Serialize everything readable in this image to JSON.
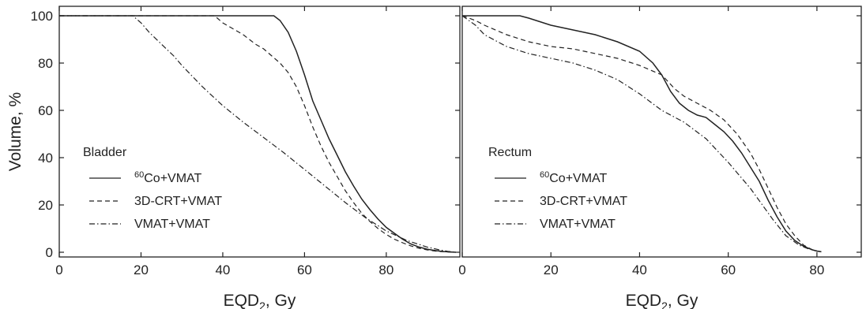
{
  "chart_data": [
    {
      "type": "line",
      "title": "",
      "xlabel": "EQD",
      "xlabel_subscript": "2",
      "xlabel_suffix": ", Gy",
      "ylabel": "Volume, %",
      "xlim": [
        0,
        98
      ],
      "ylim": [
        -2,
        104
      ],
      "xticks": [
        0,
        20,
        40,
        60,
        80
      ],
      "yticks": [
        0,
        20,
        40,
        60,
        80,
        100
      ],
      "legend_title": "Bladder",
      "legend_position": "lower-left",
      "grid": false,
      "series": [
        {
          "name_sup": "60",
          "name": "Co+VMAT",
          "line_style": "solid",
          "x": [
            0,
            50,
            52.5,
            54,
            56,
            58,
            60,
            62,
            64,
            66,
            68,
            70,
            72,
            74,
            76,
            78,
            80,
            82,
            84,
            86,
            88,
            90,
            92,
            94,
            96,
            97
          ],
          "y": [
            100,
            100,
            100,
            98,
            93,
            85,
            75,
            64,
            56,
            48,
            41,
            34,
            28,
            22.5,
            18,
            14,
            10.5,
            8,
            5.5,
            3.5,
            2.2,
            1.3,
            0.7,
            0.3,
            0.1,
            0
          ]
        },
        {
          "name": "3D-CRT+VMAT",
          "line_style": "dashed",
          "x": [
            0,
            38,
            40,
            42,
            45,
            48,
            50,
            52,
            54,
            56,
            58,
            60,
            62,
            64,
            66,
            68,
            70,
            72,
            74,
            76,
            78,
            80,
            82,
            84,
            86,
            88,
            90,
            92,
            94,
            96,
            97
          ],
          "y": [
            100,
            100,
            97,
            95,
            92,
            88,
            86,
            83,
            80,
            76,
            70,
            62,
            53,
            45,
            38,
            32,
            26,
            21,
            16.5,
            13,
            10,
            7.5,
            5.5,
            4,
            2.7,
            1.7,
            1,
            0.5,
            0.2,
            0.05,
            0
          ]
        },
        {
          "name": "VMAT+VMAT",
          "line_style": "dash-dot",
          "x": [
            0,
            18,
            20,
            22,
            25,
            28,
            30,
            35,
            40,
            45,
            50,
            55,
            60,
            65,
            70,
            75,
            80,
            85,
            90,
            93,
            95,
            97
          ],
          "y": [
            100,
            100,
            97,
            93,
            88,
            83,
            79,
            70,
            62,
            55,
            48.5,
            42,
            35,
            28,
            21,
            14.5,
            9,
            5,
            2.2,
            1,
            0.4,
            0
          ]
        }
      ]
    },
    {
      "type": "line",
      "title": "",
      "xlabel": "EQD",
      "xlabel_subscript": "2",
      "xlabel_suffix": ", Gy",
      "ylabel": "",
      "xlim": [
        0,
        90
      ],
      "ylim": [
        -2,
        104
      ],
      "xticks": [
        0,
        20,
        40,
        60,
        80
      ],
      "yticks": [],
      "legend_title": "Rectum",
      "legend_position": "lower-left",
      "grid": false,
      "series": [
        {
          "name_sup": "60",
          "name": "Co+VMAT",
          "line_style": "solid",
          "x": [
            0,
            13,
            15,
            20,
            25,
            30,
            35,
            40,
            43,
            45,
            47,
            49,
            51,
            53,
            55,
            57,
            59,
            61,
            63,
            65,
            67,
            69,
            71,
            73,
            75,
            77,
            79,
            80,
            81
          ],
          "y": [
            100,
            100,
            99,
            96,
            94,
            92,
            89,
            85,
            80,
            75,
            68,
            63,
            60,
            58,
            57,
            54,
            51,
            47,
            42,
            36,
            30,
            22,
            15,
            9,
            5,
            2.5,
            1,
            0.5,
            0.2
          ]
        },
        {
          "name": "3D-CRT+VMAT",
          "line_style": "dashed",
          "x": [
            0,
            3,
            5,
            10,
            15,
            20,
            25,
            30,
            35,
            40,
            45,
            48,
            50,
            53,
            56,
            59,
            62,
            65,
            67,
            69,
            71,
            73,
            75,
            77,
            79,
            80,
            81
          ],
          "y": [
            100,
            98,
            96,
            92,
            89,
            87,
            86,
            84,
            82,
            79,
            75,
            69,
            66,
            63,
            60,
            56,
            50,
            42,
            35,
            27,
            19,
            12,
            7,
            3,
            1,
            0.5,
            0.2
          ]
        },
        {
          "name": "VMAT+VMAT",
          "line_style": "dash-dot",
          "x": [
            0,
            3,
            5,
            10,
            15,
            20,
            25,
            30,
            35,
            40,
            45,
            50,
            55,
            60,
            65,
            70,
            73,
            76,
            78,
            80,
            81
          ],
          "y": [
            100,
            96,
            92,
            87,
            84,
            82,
            80,
            77,
            73,
            67,
            60,
            55,
            48,
            38,
            27,
            14,
            7,
            3,
            1.5,
            0.5,
            0.2
          ]
        }
      ]
    }
  ]
}
